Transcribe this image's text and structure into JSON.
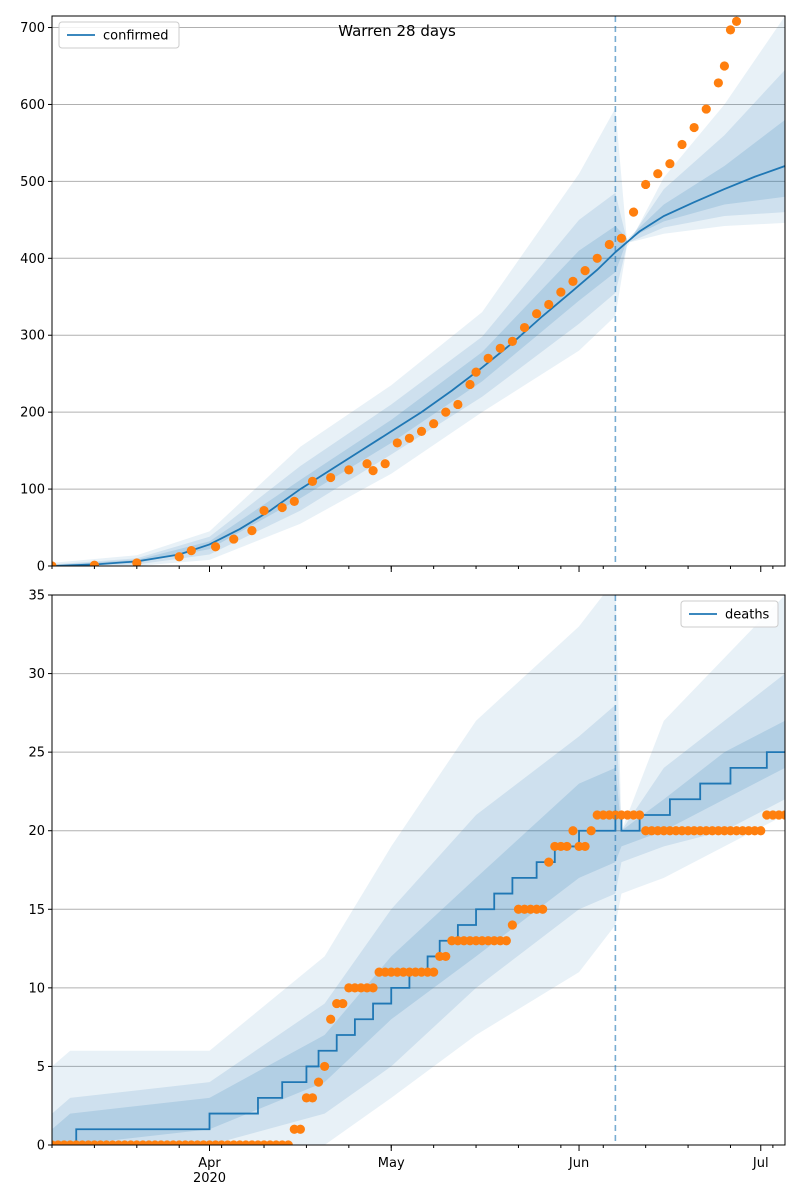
{
  "colors": {
    "model": "#1f77b4",
    "observed": "#ff7f0e",
    "band": "#1f77b4",
    "grid": "#b0b0b0",
    "forecast_line": "#1f77b4"
  },
  "chart_data": [
    {
      "type": "line",
      "title": "Warren 28 days",
      "xlabel": "",
      "ylabel": "",
      "x_start": "2020-03-06",
      "x_end": "2020-07-05",
      "forecast_date": "2020-06-07",
      "ylim": [
        0,
        715
      ],
      "y_ticks": [
        0,
        100,
        200,
        300,
        400,
        500,
        600,
        700
      ],
      "grid": "horizontal",
      "legend": {
        "position": "top-left",
        "entries": [
          "confirmed"
        ]
      },
      "series": [
        {
          "name": "confirmed",
          "kind": "median-line",
          "points": [
            [
              "2020-03-06",
              0
            ],
            [
              "2020-03-13",
              2
            ],
            [
              "2020-03-20",
              6
            ],
            [
              "2020-03-27",
              15
            ],
            [
              "2020-04-01",
              28
            ],
            [
              "2020-04-06",
              48
            ],
            [
              "2020-04-11",
              72
            ],
            [
              "2020-04-16",
              100
            ],
            [
              "2020-04-21",
              125
            ],
            [
              "2020-04-26",
              150
            ],
            [
              "2020-05-01",
              175
            ],
            [
              "2020-05-06",
              200
            ],
            [
              "2020-05-11",
              228
            ],
            [
              "2020-05-16",
              258
            ],
            [
              "2020-05-21",
              290
            ],
            [
              "2020-05-26",
              325
            ],
            [
              "2020-05-31",
              358
            ],
            [
              "2020-06-04",
              385
            ],
            [
              "2020-06-07",
              408
            ],
            [
              "2020-06-11",
              435
            ],
            [
              "2020-06-15",
              455
            ],
            [
              "2020-06-20",
              473
            ],
            [
              "2020-06-25",
              490
            ],
            [
              "2020-06-30",
              506
            ],
            [
              "2020-07-05",
              520
            ]
          ]
        },
        {
          "name": "",
          "kind": "observed-points",
          "points": [
            [
              "2020-03-06",
              0
            ],
            [
              "2020-03-13",
              1
            ],
            [
              "2020-03-20",
              4
            ],
            [
              "2020-03-27",
              12
            ],
            [
              "2020-03-29",
              20
            ],
            [
              "2020-04-02",
              25
            ],
            [
              "2020-04-05",
              35
            ],
            [
              "2020-04-08",
              46
            ],
            [
              "2020-04-10",
              72
            ],
            [
              "2020-04-13",
              76
            ],
            [
              "2020-04-15",
              84
            ],
            [
              "2020-04-18",
              110
            ],
            [
              "2020-04-21",
              115
            ],
            [
              "2020-04-24",
              125
            ],
            [
              "2020-04-27",
              133
            ],
            [
              "2020-04-28",
              124
            ],
            [
              "2020-04-30",
              133
            ],
            [
              "2020-05-02",
              160
            ],
            [
              "2020-05-04",
              166
            ],
            [
              "2020-05-06",
              175
            ],
            [
              "2020-05-08",
              185
            ],
            [
              "2020-05-10",
              200
            ],
            [
              "2020-05-12",
              210
            ],
            [
              "2020-05-14",
              236
            ],
            [
              "2020-05-15",
              252
            ],
            [
              "2020-05-17",
              270
            ],
            [
              "2020-05-19",
              283
            ],
            [
              "2020-05-21",
              292
            ],
            [
              "2020-05-23",
              310
            ],
            [
              "2020-05-25",
              328
            ],
            [
              "2020-05-27",
              340
            ],
            [
              "2020-05-29",
              356
            ],
            [
              "2020-05-31",
              370
            ],
            [
              "2020-06-02",
              384
            ],
            [
              "2020-06-04",
              400
            ],
            [
              "2020-06-06",
              418
            ],
            [
              "2020-06-08",
              426
            ],
            [
              "2020-06-10",
              460
            ],
            [
              "2020-06-12",
              496
            ],
            [
              "2020-06-14",
              510
            ],
            [
              "2020-06-16",
              523
            ],
            [
              "2020-06-18",
              548
            ],
            [
              "2020-06-20",
              570
            ],
            [
              "2020-06-22",
              594
            ],
            [
              "2020-06-24",
              628
            ],
            [
              "2020-06-25",
              650
            ],
            [
              "2020-06-26",
              697
            ],
            [
              "2020-06-27",
              708
            ]
          ]
        }
      ],
      "bands": [
        {
          "level": "outer",
          "points": [
            [
              "2020-03-06",
              0,
              4
            ],
            [
              "2020-03-20",
              0,
              14
            ],
            [
              "2020-04-01",
              8,
              45
            ],
            [
              "2020-04-16",
              55,
              155
            ],
            [
              "2020-05-01",
              120,
              235
            ],
            [
              "2020-05-16",
              200,
              330
            ],
            [
              "2020-06-01",
              280,
              510
            ],
            [
              "2020-06-07",
              325,
              595
            ],
            [
              "2020-06-09",
              420,
              415
            ],
            [
              "2020-06-15",
              432,
              505
            ],
            [
              "2020-06-25",
              442,
              600
            ],
            [
              "2020-07-05",
              446,
              715
            ]
          ]
        },
        {
          "level": "middle",
          "points": [
            [
              "2020-03-06",
              0,
              2
            ],
            [
              "2020-03-20",
              2,
              10
            ],
            [
              "2020-04-01",
              15,
              38
            ],
            [
              "2020-04-16",
              72,
              130
            ],
            [
              "2020-05-01",
              145,
              210
            ],
            [
              "2020-05-16",
              220,
              298
            ],
            [
              "2020-06-01",
              315,
              450
            ],
            [
              "2020-06-07",
              355,
              485
            ],
            [
              "2020-06-09",
              420,
              420
            ],
            [
              "2020-06-15",
              440,
              490
            ],
            [
              "2020-06-25",
              455,
              560
            ],
            [
              "2020-07-05",
              460,
              645
            ]
          ]
        },
        {
          "level": "inner",
          "points": [
            [
              "2020-03-06",
              0,
              1
            ],
            [
              "2020-03-20",
              4,
              8
            ],
            [
              "2020-04-01",
              22,
              32
            ],
            [
              "2020-04-16",
              88,
              112
            ],
            [
              "2020-05-01",
              160,
              190
            ],
            [
              "2020-05-16",
              240,
              278
            ],
            [
              "2020-06-01",
              345,
              410
            ],
            [
              "2020-06-07",
              382,
              442
            ],
            [
              "2020-06-09",
              425,
              425
            ],
            [
              "2020-06-15",
              448,
              470
            ],
            [
              "2020-06-25",
              470,
              520
            ],
            [
              "2020-07-05",
              480,
              580
            ]
          ]
        }
      ]
    },
    {
      "type": "line",
      "title": "",
      "xlabel": "",
      "ylabel": "",
      "x_start": "2020-03-06",
      "x_end": "2020-07-05",
      "forecast_date": "2020-06-07",
      "ylim": [
        0,
        35
      ],
      "y_ticks": [
        0,
        5,
        10,
        15,
        20,
        25,
        30,
        35
      ],
      "x_ticks": [
        {
          "date": "2020-04-01",
          "label": "Apr",
          "sublabel": "2020"
        },
        {
          "date": "2020-05-01",
          "label": "May",
          "sublabel": ""
        },
        {
          "date": "2020-06-01",
          "label": "Jun",
          "sublabel": ""
        },
        {
          "date": "2020-07-01",
          "label": "Jul",
          "sublabel": ""
        }
      ],
      "grid": "horizontal",
      "legend": {
        "position": "top-right",
        "entries": [
          "deaths"
        ]
      },
      "series": [
        {
          "name": "deaths",
          "kind": "median-step",
          "points": [
            [
              "2020-03-06",
              0
            ],
            [
              "2020-03-10",
              1
            ],
            [
              "2020-04-01",
              2
            ],
            [
              "2020-04-09",
              3
            ],
            [
              "2020-04-13",
              4
            ],
            [
              "2020-04-17",
              5
            ],
            [
              "2020-04-19",
              6
            ],
            [
              "2020-04-22",
              7
            ],
            [
              "2020-04-25",
              8
            ],
            [
              "2020-04-28",
              9
            ],
            [
              "2020-05-01",
              10
            ],
            [
              "2020-05-04",
              11
            ],
            [
              "2020-05-07",
              12
            ],
            [
              "2020-05-09",
              13
            ],
            [
              "2020-05-12",
              14
            ],
            [
              "2020-05-15",
              15
            ],
            [
              "2020-05-18",
              16
            ],
            [
              "2020-05-21",
              17
            ],
            [
              "2020-05-25",
              18
            ],
            [
              "2020-05-28",
              19
            ],
            [
              "2020-06-01",
              20
            ],
            [
              "2020-06-07",
              21
            ],
            [
              "2020-06-08",
              20
            ],
            [
              "2020-06-11",
              21
            ],
            [
              "2020-06-16",
              22
            ],
            [
              "2020-06-21",
              23
            ],
            [
              "2020-06-26",
              24
            ],
            [
              "2020-07-02",
              25
            ],
            [
              "2020-07-05",
              25
            ]
          ]
        },
        {
          "name": "",
          "kind": "observed-points",
          "points": [
            [
              "2020-03-06",
              0
            ],
            [
              "2020-04-14",
              0
            ],
            [
              "2020-04-15",
              1
            ],
            [
              "2020-04-16",
              1
            ],
            [
              "2020-04-17",
              3
            ],
            [
              "2020-04-18",
              3
            ],
            [
              "2020-04-19",
              4
            ],
            [
              "2020-04-20",
              5
            ],
            [
              "2020-04-21",
              8
            ],
            [
              "2020-04-22",
              9
            ],
            [
              "2020-04-23",
              9
            ],
            [
              "2020-04-24",
              10
            ],
            [
              "2020-04-28",
              10
            ],
            [
              "2020-04-29",
              11
            ],
            [
              "2020-05-08",
              11
            ],
            [
              "2020-05-09",
              12
            ],
            [
              "2020-05-10",
              12
            ],
            [
              "2020-05-11",
              13
            ],
            [
              "2020-05-20",
              13
            ],
            [
              "2020-05-21",
              14
            ],
            [
              "2020-05-22",
              15
            ],
            [
              "2020-05-26",
              15
            ],
            [
              "2020-05-27",
              18
            ],
            [
              "2020-05-28",
              19
            ],
            [
              "2020-05-30",
              19
            ],
            [
              "2020-05-31",
              20
            ],
            [
              "2020-06-01",
              19
            ],
            [
              "2020-06-02",
              19
            ],
            [
              "2020-06-03",
              20
            ],
            [
              "2020-06-04",
              21
            ],
            [
              "2020-06-11",
              21
            ],
            [
              "2020-06-12",
              20
            ],
            [
              "2020-07-01",
              20
            ],
            [
              "2020-07-02",
              21
            ],
            [
              "2020-07-05",
              21
            ]
          ]
        }
      ],
      "bands": [
        {
          "level": "outer",
          "points": [
            [
              "2020-03-06",
              0,
              5
            ],
            [
              "2020-03-09",
              0,
              6
            ],
            [
              "2020-04-01",
              0,
              6
            ],
            [
              "2020-04-20",
              0,
              12
            ],
            [
              "2020-05-01",
              3,
              19
            ],
            [
              "2020-05-15",
              7,
              27
            ],
            [
              "2020-06-01",
              11,
              33
            ],
            [
              "2020-06-07",
              14,
              36
            ],
            [
              "2020-06-08",
              16,
              20
            ],
            [
              "2020-06-15",
              17,
              27
            ],
            [
              "2020-06-25",
              19,
              31
            ],
            [
              "2020-07-05",
              21,
              35
            ]
          ]
        },
        {
          "level": "middle",
          "points": [
            [
              "2020-03-06",
              0,
              2
            ],
            [
              "2020-03-09",
              0,
              3
            ],
            [
              "2020-04-01",
              0,
              4
            ],
            [
              "2020-04-20",
              2,
              9
            ],
            [
              "2020-05-01",
              5,
              15
            ],
            [
              "2020-05-15",
              10,
              21
            ],
            [
              "2020-06-01",
              15,
              26
            ],
            [
              "2020-06-07",
              16,
              28
            ],
            [
              "2020-06-08",
              18,
              20
            ],
            [
              "2020-06-15",
              19,
              24
            ],
            [
              "2020-06-25",
              20,
              27
            ],
            [
              "2020-07-05",
              22,
              30
            ]
          ]
        },
        {
          "level": "inner",
          "points": [
            [
              "2020-03-06",
              0,
              1
            ],
            [
              "2020-03-09",
              0,
              2
            ],
            [
              "2020-04-01",
              1,
              3
            ],
            [
              "2020-04-20",
              4,
              7
            ],
            [
              "2020-05-01",
              8,
              12
            ],
            [
              "2020-05-15",
              12,
              17
            ],
            [
              "2020-06-01",
              17,
              23
            ],
            [
              "2020-06-07",
              18,
              24
            ],
            [
              "2020-06-08",
              19,
              20
            ],
            [
              "2020-06-15",
              20,
              22
            ],
            [
              "2020-06-25",
              22,
              25
            ],
            [
              "2020-07-05",
              24,
              27
            ]
          ]
        }
      ]
    }
  ]
}
